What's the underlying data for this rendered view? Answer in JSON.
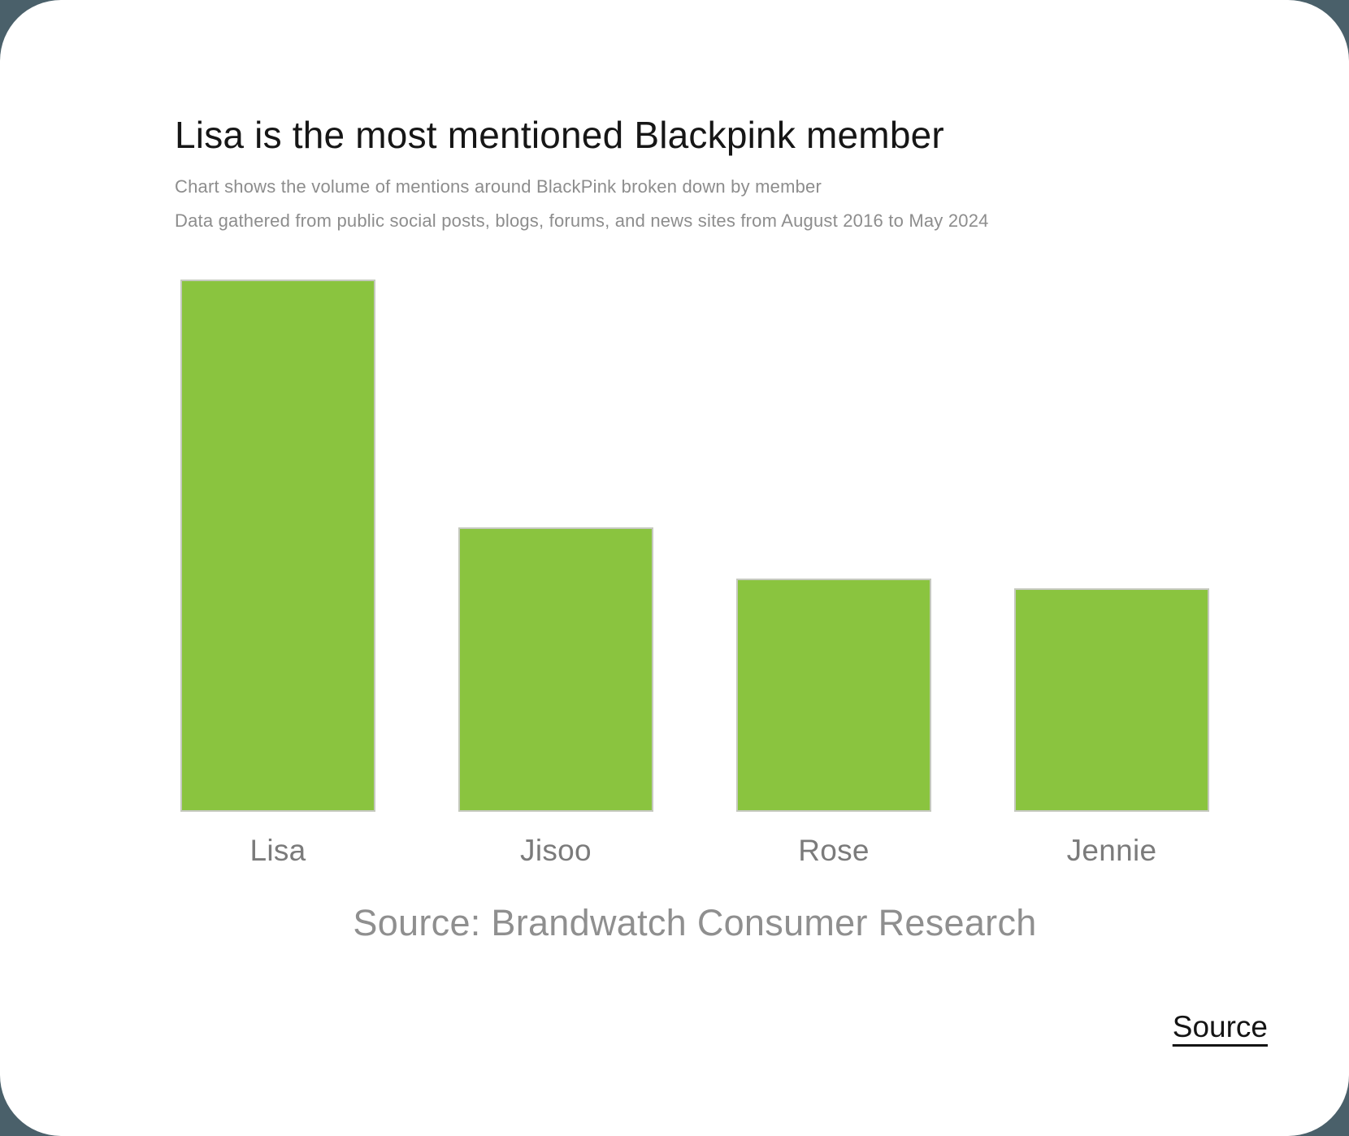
{
  "page": {
    "background_color": "#4a606a",
    "card_color": "#ffffff"
  },
  "header": {
    "title": "Lisa is the most mentioned Blackpink member",
    "subtitle1": "Chart shows the volume of mentions around BlackPink broken down by member",
    "subtitle2": "Data gathered from public social posts, blogs, forums, and news sites from August 2016 to May 2024"
  },
  "chart_data": {
    "type": "bar",
    "title": "Lisa is the most mentioned Blackpink member",
    "subtitle": "Chart shows the volume of mentions around BlackPink broken down by member",
    "categories": [
      "Lisa",
      "Jisoo",
      "Rose",
      "Jennie"
    ],
    "values": [
      100,
      53.4,
      43.8,
      42.0
    ],
    "value_units": "relative volume of mentions (no numeric axis shown; Lisa bar = 100)",
    "xlabel": "",
    "ylabel": "",
    "grid": false,
    "legend": false,
    "bar_color": "#8ac43f",
    "bar_border_color": "#c5c9be"
  },
  "footer": {
    "source_note": "Source: Brandwatch Consumer Research",
    "source_link_label": "Source"
  }
}
